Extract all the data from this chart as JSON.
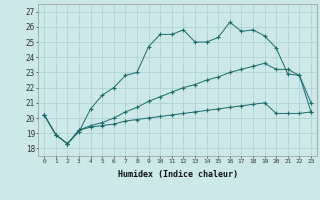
{
  "xlabel": "Humidex (Indice chaleur)",
  "background_color": "#cce8e8",
  "grid_color": "#aacfcf",
  "line_color": "#1a6b6b",
  "xlim": [
    -0.5,
    23.5
  ],
  "ylim": [
    17.5,
    27.5
  ],
  "x_ticks": [
    0,
    1,
    2,
    3,
    4,
    5,
    6,
    7,
    8,
    9,
    10,
    11,
    12,
    13,
    14,
    15,
    16,
    17,
    18,
    19,
    20,
    21,
    22,
    23
  ],
  "y_ticks": [
    18,
    19,
    20,
    21,
    22,
    23,
    24,
    25,
    26,
    27
  ],
  "series": [
    [
      20.2,
      18.9,
      18.3,
      19.1,
      20.6,
      21.5,
      22.0,
      22.8,
      23.0,
      24.7,
      25.5,
      25.5,
      25.8,
      25.0,
      25.0,
      25.3,
      26.3,
      25.7,
      25.8,
      25.4,
      24.6,
      22.9,
      22.8,
      21.0
    ],
    [
      20.2,
      18.9,
      18.3,
      19.2,
      19.5,
      19.7,
      20.0,
      20.4,
      20.7,
      21.1,
      21.4,
      21.7,
      22.0,
      22.2,
      22.5,
      22.7,
      23.0,
      23.2,
      23.4,
      23.6,
      23.2,
      23.2,
      22.8,
      20.4
    ],
    [
      20.2,
      18.9,
      18.3,
      19.2,
      19.4,
      19.5,
      19.6,
      19.8,
      19.9,
      20.0,
      20.1,
      20.2,
      20.3,
      20.4,
      20.5,
      20.6,
      20.7,
      20.8,
      20.9,
      21.0,
      20.3,
      20.3,
      20.3,
      20.4
    ]
  ]
}
